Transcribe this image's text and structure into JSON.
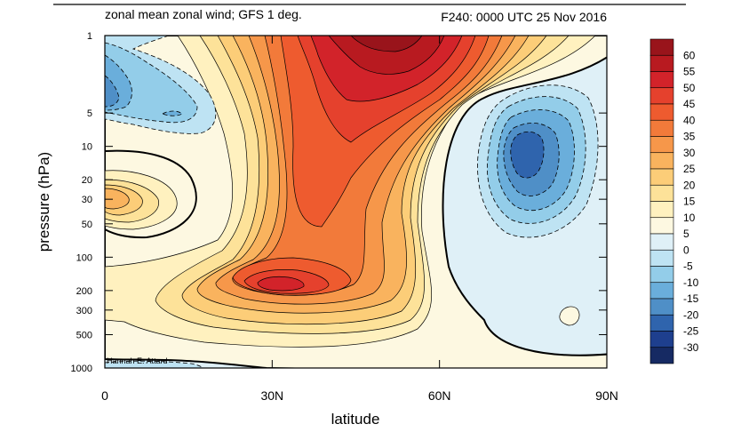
{
  "title_left": "zonal mean zonal wind; GFS 1 deg.",
  "title_right": "F240: 0000 UTC 25 Nov 2016",
  "credit": "Hannah E. Attard",
  "chart_data": {
    "type": "heatmap",
    "xlabel": "latitude",
    "ylabel": "pressure (hPa)",
    "x_ticks": [
      {
        "value": 0,
        "label": "0"
      },
      {
        "value": 30,
        "label": "30N"
      },
      {
        "value": 60,
        "label": "60N"
      },
      {
        "value": 90,
        "label": "90N"
      }
    ],
    "y_scale": "log",
    "y_reversed": true,
    "xlim": [
      0,
      90
    ],
    "ylim": [
      1000,
      1
    ],
    "y_ticks": [
      {
        "value": 1,
        "label": "1"
      },
      {
        "value": 5,
        "label": "5"
      },
      {
        "value": 10,
        "label": "10"
      },
      {
        "value": 20,
        "label": "20"
      },
      {
        "value": 30,
        "label": "30"
      },
      {
        "value": 50,
        "label": "50"
      },
      {
        "value": 100,
        "label": "100"
      },
      {
        "value": 200,
        "label": "200"
      },
      {
        "value": 300,
        "label": "300"
      },
      {
        "value": 500,
        "label": "500"
      },
      {
        "value": 1000,
        "label": "1000"
      }
    ],
    "contour_interval": 5,
    "colorbar": {
      "labels": [
        "60",
        "55",
        "50",
        "45",
        "40",
        "35",
        "30",
        "25",
        "20",
        "15",
        "10",
        "5",
        "0",
        "-5",
        "-10",
        "-15",
        "-20",
        "-25",
        "-30"
      ],
      "colors": [
        "#99141b",
        "#b81a20",
        "#d2232a",
        "#e5412d",
        "#ee5b2f",
        "#f27a3a",
        "#f6974a",
        "#f9b35e",
        "#fccd78",
        "#fde299",
        "#fff1bf",
        "#fdf8e1",
        "#dff0f7",
        "#bee3f3",
        "#93cde9",
        "#6aaedb",
        "#4f8fc7",
        "#2f64ad",
        "#1e3f8e",
        "#162a63"
      ]
    },
    "features": [
      {
        "name": "stratospheric westerly jet max",
        "lat": 48,
        "pressure": 1,
        "value": 60
      },
      {
        "name": "subtropical jet core",
        "lat": 31,
        "pressure": 200,
        "value": 45
      },
      {
        "name": "polar stratospheric easterly min",
        "lat": 75,
        "pressure": 12,
        "value": -25
      },
      {
        "name": "tropical stratospheric easterly min",
        "lat": 0,
        "pressure": 3,
        "value": -20
      },
      {
        "name": "tropical westerly max",
        "lat": 0,
        "pressure": 30,
        "value": 20
      }
    ]
  }
}
